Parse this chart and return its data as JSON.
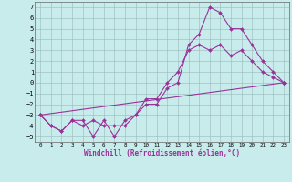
{
  "xlabel": "Windchill (Refroidissement éolien,°C)",
  "ylim": [
    -5.5,
    7.5
  ],
  "xlim": [
    -0.5,
    23.5
  ],
  "yticks": [
    -5,
    -4,
    -3,
    -2,
    -1,
    0,
    1,
    2,
    3,
    4,
    5,
    6,
    7
  ],
  "xticks": [
    0,
    1,
    2,
    3,
    4,
    5,
    6,
    7,
    8,
    9,
    10,
    11,
    12,
    13,
    14,
    15,
    16,
    17,
    18,
    19,
    20,
    21,
    22,
    23
  ],
  "background_color": "#c8ecec",
  "grid_color": "#b0cccc",
  "grid_color2": "#888888",
  "line_color": "#993399",
  "line1_x": [
    0,
    1,
    2,
    3,
    4,
    5,
    6,
    7,
    8,
    9,
    10,
    11,
    12,
    13,
    14,
    15,
    16,
    17,
    18,
    19,
    20,
    21,
    22,
    23
  ],
  "line1_y": [
    -3,
    -4,
    -4.5,
    -3.5,
    -3.5,
    -5,
    -3.5,
    -5,
    -3.5,
    -3,
    -1.5,
    -1.5,
    0,
    1,
    3,
    3.5,
    3,
    3.5,
    2.5,
    3,
    2,
    1,
    0.5,
    0
  ],
  "line2_x": [
    0,
    1,
    2,
    3,
    4,
    5,
    6,
    7,
    8,
    9,
    10,
    11,
    12,
    13,
    14,
    15,
    16,
    17,
    18,
    19,
    20,
    21,
    22,
    23
  ],
  "line2_y": [
    -3,
    -4,
    -4.5,
    -3.5,
    -4,
    -3.5,
    -4,
    -4,
    -4,
    -3,
    -2,
    -2,
    -0.5,
    0,
    3.5,
    4.5,
    7,
    6.5,
    5,
    5,
    3.5,
    2,
    1,
    0
  ],
  "line3_x": [
    0,
    23
  ],
  "line3_y": [
    -3,
    0
  ],
  "markersize": 2.0,
  "linewidth": 0.8
}
